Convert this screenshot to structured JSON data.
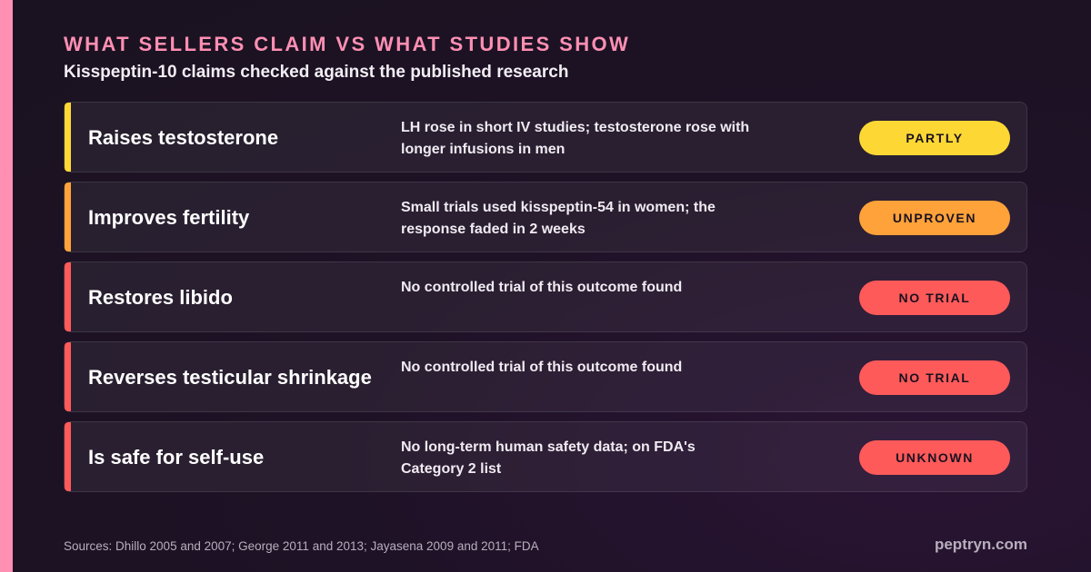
{
  "eyebrow": "WHAT SELLERS CLAIM VS WHAT STUDIES SHOW",
  "subtitle": "Kisspeptin-10 claims checked against the published research",
  "rows": [
    {
      "claim": "Raises testosterone",
      "finding": "LH rose in short IV studies; testosterone rose with longer infusions in men",
      "verdict": "PARTLY",
      "color": "#fdd835"
    },
    {
      "claim": "Improves fertility",
      "finding": "Small trials used kisspeptin-54 in women; the response faded in 2 weeks",
      "verdict": "UNPROVEN",
      "color": "#ffa23a"
    },
    {
      "claim": "Restores libido",
      "finding": "No controlled trial of this outcome found",
      "verdict": "NO TRIAL",
      "color": "#ff5a5a"
    },
    {
      "claim": "Reverses testicular shrinkage",
      "finding": "No controlled trial of this outcome found",
      "verdict": "NO TRIAL",
      "color": "#ff5a5a"
    },
    {
      "claim": "Is safe for self-use",
      "finding": "No long-term human safety data; on FDA's Category 2 list",
      "verdict": "UNKNOWN",
      "color": "#ff5a5a"
    }
  ],
  "sources": "Sources: Dhillo 2005 and 2007; George 2011 and 2013; Jayasena 2009 and 2011; FDA",
  "brand": "peptryn.com",
  "accent_color": "#ff8fb3"
}
